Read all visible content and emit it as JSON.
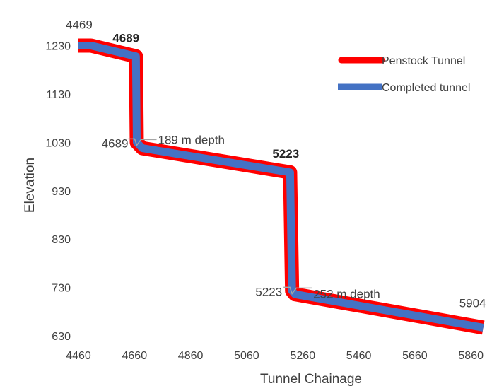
{
  "chart_data": {
    "type": "line",
    "xlabel": "Tunnel Chainage",
    "ylabel": "Elevation",
    "xlim": [
      4460,
      5920
    ],
    "ylim": [
      630,
      1260
    ],
    "x_ticks": [
      4460,
      4660,
      4860,
      5060,
      5260,
      5460,
      5660,
      5860
    ],
    "y_ticks": [
      630,
      730,
      830,
      930,
      1030,
      1130,
      1230
    ],
    "grid": false,
    "legend_position": "top-right",
    "series": [
      {
        "name": "Penstock Tunnel",
        "color": "#ff0000",
        "x": [
          4460,
          4505,
          4665,
          4668,
          4688,
          5215,
          5222,
          5232,
          5904
        ],
        "y": [
          1230,
          1230,
          1208,
          1030,
          1018,
          968,
          723,
          716,
          647
        ]
      },
      {
        "name": "Completed tunnel",
        "color": "#4472c4",
        "x": [
          4460,
          4505,
          4665,
          4668,
          4688,
          5215,
          5222,
          5232,
          5904
        ],
        "y": [
          1230,
          1230,
          1208,
          1030,
          1018,
          968,
          723,
          716,
          647
        ]
      }
    ],
    "annotations": [
      {
        "text": "4469",
        "x": 4470,
        "y": 1230,
        "style": "normal"
      },
      {
        "text": "4689",
        "x": 4665,
        "y": 1208,
        "style": "bold"
      },
      {
        "text": "4689",
        "x": 4668,
        "y": 1030,
        "style": "normal"
      },
      {
        "text": "189 m depth",
        "x": 4668,
        "y": 1030,
        "style": "normal"
      },
      {
        "text": "5223",
        "x": 5215,
        "y": 968,
        "style": "bold"
      },
      {
        "text": "5223",
        "x": 5222,
        "y": 723,
        "style": "normal"
      },
      {
        "text": "252 m depth",
        "x": 5222,
        "y": 723,
        "style": "normal"
      },
      {
        "text": "5904",
        "x": 5904,
        "y": 647,
        "style": "normal"
      }
    ]
  }
}
